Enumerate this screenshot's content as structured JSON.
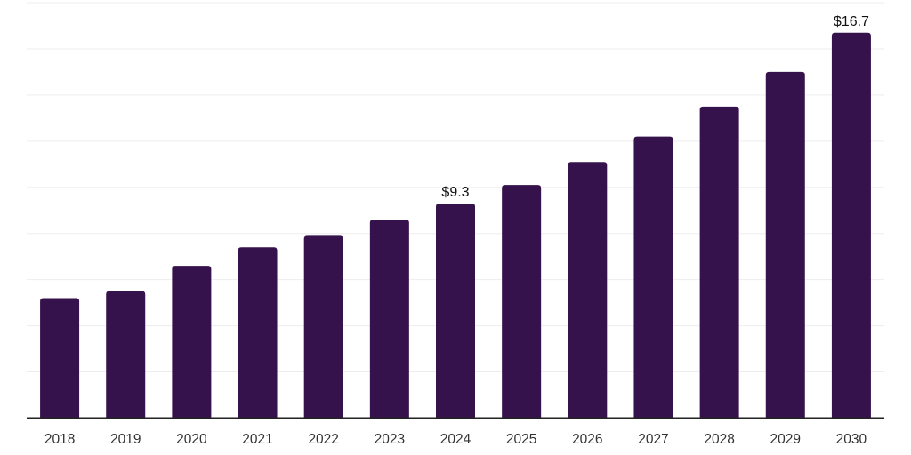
{
  "chart_data": {
    "type": "bar",
    "title": "",
    "categories": [
      "2018",
      "2019",
      "2020",
      "2021",
      "2022",
      "2023",
      "2024",
      "2025",
      "2026",
      "2027",
      "2028",
      "2029",
      "2030"
    ],
    "values": [
      5.2,
      5.5,
      6.6,
      7.4,
      7.9,
      8.6,
      9.3,
      10.1,
      11.1,
      12.2,
      13.5,
      15.0,
      16.7
    ],
    "data_labels": {
      "2024": "$9.3",
      "2030": "$16.7"
    },
    "xlabel": "",
    "ylabel": "",
    "ylim": [
      0,
      18
    ],
    "grid_step": 2,
    "grid": true,
    "legend": false,
    "y_axis_labels_visible": false,
    "colors": {
      "bar": "#35124B",
      "axis": "#222222",
      "gridline": "#ededed",
      "tick_label": "#333333",
      "data_label": "#111111",
      "background": "#ffffff"
    }
  }
}
